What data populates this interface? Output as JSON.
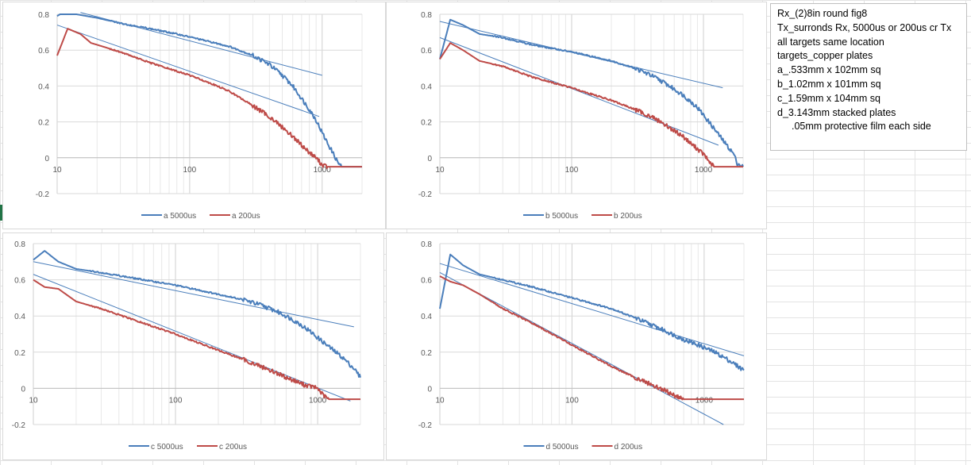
{
  "colors": {
    "series_5000": "#4a7ebb",
    "series_200": "#be4b48",
    "trend": "#4a7ebb",
    "grid": "#d9d9d9",
    "axis_text": "#595959"
  },
  "notes": {
    "lines": [
      "Rx_(2)8in round fig8",
      "Tx_surronds Rx, 5000us or 200us cr Tx",
      "all targets same location",
      "targets_copper plates",
      "a_.533mm x 102mm sq",
      "b_1.02mm x 101mm sq",
      "c_1.59mm x 104mm sq",
      "d_3.143mm stacked plates"
    ],
    "indented_line": ".05mm protective film each side"
  },
  "chart_data": [
    {
      "type": "line",
      "id": "a",
      "x_scale": "log",
      "xlim": [
        10,
        2000
      ],
      "ylim": [
        -0.2,
        0.8
      ],
      "y_ticks": [
        "0.8",
        "0.6",
        "0.4",
        "0.2",
        "0",
        "-0.2"
      ],
      "y_tick_values": [
        0.8,
        0.6,
        0.4,
        0.2,
        0,
        -0.2
      ],
      "x_ticks": [
        "10",
        "100",
        "1000"
      ],
      "x_tick_values": [
        10,
        100,
        1000
      ],
      "series": [
        {
          "name": "a 5000us",
          "x": [
            10,
            10.5,
            11,
            12,
            14,
            20,
            30,
            50,
            80,
            120,
            200,
            300,
            400,
            500,
            600,
            700,
            800,
            900,
            1000,
            1100,
            1200,
            1300,
            1400,
            2000
          ],
          "y": [
            0.79,
            0.8,
            0.8,
            0.8,
            0.8,
            0.78,
            0.75,
            0.72,
            0.69,
            0.66,
            0.62,
            0.57,
            0.52,
            0.46,
            0.4,
            0.33,
            0.27,
            0.21,
            0.14,
            0.08,
            0.03,
            -0.02,
            -0.05,
            -0.05
          ]
        },
        {
          "name": "a 200us",
          "x": [
            10,
            12,
            15,
            18,
            20,
            30,
            50,
            100,
            150,
            200,
            300,
            400,
            500,
            600,
            700,
            800,
            900,
            1000,
            1100,
            2000
          ],
          "y": [
            0.57,
            0.72,
            0.69,
            0.64,
            0.63,
            0.59,
            0.53,
            0.46,
            0.41,
            0.37,
            0.29,
            0.23,
            0.17,
            0.12,
            0.07,
            0.03,
            0.0,
            -0.04,
            -0.05,
            -0.05
          ]
        }
      ],
      "trendlines": [
        {
          "x": [
            15,
            1000
          ],
          "y": [
            0.81,
            0.46
          ]
        },
        {
          "x": [
            10,
            950
          ],
          "y": [
            0.74,
            0.23
          ]
        }
      ],
      "legend": "bottom"
    },
    {
      "type": "line",
      "id": "b",
      "x_scale": "log",
      "xlim": [
        10,
        2000
      ],
      "ylim": [
        -0.2,
        0.8
      ],
      "y_ticks": [
        "0.8",
        "0.6",
        "0.4",
        "0.2",
        "0",
        "-0.2"
      ],
      "y_tick_values": [
        0.8,
        0.6,
        0.4,
        0.2,
        0,
        -0.2
      ],
      "x_ticks": [
        "10",
        "100",
        "1000"
      ],
      "x_tick_values": [
        10,
        100,
        1000
      ],
      "series": [
        {
          "name": "b 5000us",
          "x": [
            10,
            12,
            15,
            20,
            30,
            50,
            100,
            200,
            300,
            400,
            500,
            700,
            900,
            1100,
            1300,
            1500,
            1700,
            1800,
            2000
          ],
          "y": [
            0.55,
            0.77,
            0.74,
            0.69,
            0.67,
            0.63,
            0.59,
            0.54,
            0.5,
            0.46,
            0.42,
            0.35,
            0.28,
            0.2,
            0.13,
            0.07,
            0.02,
            -0.03,
            -0.05
          ]
        },
        {
          "name": "b 200us",
          "x": [
            10,
            12,
            15,
            20,
            30,
            50,
            100,
            200,
            300,
            400,
            500,
            600,
            700,
            800,
            900,
            1000,
            1100,
            1200,
            2000
          ],
          "y": [
            0.55,
            0.64,
            0.6,
            0.54,
            0.51,
            0.45,
            0.39,
            0.32,
            0.27,
            0.23,
            0.19,
            0.15,
            0.12,
            0.08,
            0.05,
            0.02,
            -0.02,
            -0.05,
            -0.05
          ]
        }
      ],
      "trendlines": [
        {
          "x": [
            10,
            1400
          ],
          "y": [
            0.76,
            0.39
          ]
        },
        {
          "x": [
            10,
            1300
          ],
          "y": [
            0.67,
            0.07
          ]
        }
      ],
      "legend": "bottom"
    },
    {
      "type": "line",
      "id": "c",
      "x_scale": "log",
      "xlim": [
        10,
        2000
      ],
      "ylim": [
        -0.2,
        0.8
      ],
      "y_ticks": [
        "0.8",
        "0.6",
        "0.4",
        "0.2",
        "0",
        "-0.2"
      ],
      "y_tick_values": [
        0.8,
        0.6,
        0.4,
        0.2,
        0,
        -0.2
      ],
      "x_ticks": [
        "10",
        "100",
        "1000"
      ],
      "x_tick_values": [
        10,
        100,
        1000
      ],
      "series": [
        {
          "name": "c 5000us",
          "x": [
            10,
            12,
            15,
            20,
            30,
            50,
            100,
            200,
            300,
            400,
            500,
            600,
            700,
            800,
            900,
            1000,
            1200,
            1500,
            1800,
            2000
          ],
          "y": [
            0.71,
            0.76,
            0.7,
            0.66,
            0.64,
            0.61,
            0.57,
            0.52,
            0.49,
            0.46,
            0.43,
            0.4,
            0.37,
            0.34,
            0.31,
            0.28,
            0.23,
            0.17,
            0.11,
            0.06
          ]
        },
        {
          "name": "c 200us",
          "x": [
            10,
            12,
            15,
            20,
            30,
            50,
            100,
            200,
            300,
            400,
            500,
            600,
            700,
            800,
            900,
            1000,
            1100,
            1200,
            2000
          ],
          "y": [
            0.6,
            0.56,
            0.55,
            0.48,
            0.44,
            0.38,
            0.3,
            0.21,
            0.16,
            0.12,
            0.09,
            0.06,
            0.04,
            0.02,
            0.01,
            0.0,
            -0.04,
            -0.06,
            -0.06
          ]
        }
      ],
      "trendlines": [
        {
          "x": [
            10,
            1800
          ],
          "y": [
            0.7,
            0.34
          ]
        },
        {
          "x": [
            10,
            1700
          ],
          "y": [
            0.63,
            -0.07
          ]
        }
      ],
      "legend": "bottom"
    },
    {
      "type": "line",
      "id": "d",
      "x_scale": "log",
      "xlim": [
        10,
        2000
      ],
      "ylim": [
        -0.2,
        0.8
      ],
      "y_ticks": [
        "0.8",
        "0.6",
        "0.4",
        "0.2",
        "0",
        "-0.2"
      ],
      "y_tick_values": [
        0.8,
        0.6,
        0.4,
        0.2,
        0,
        -0.2
      ],
      "x_ticks": [
        "10",
        "100",
        "1000"
      ],
      "x_tick_values": [
        10,
        100,
        1000
      ],
      "series": [
        {
          "name": "d 5000us",
          "x": [
            10,
            12,
            15,
            20,
            30,
            50,
            100,
            200,
            300,
            400,
            500,
            700,
            900,
            1200,
            1500,
            2000
          ],
          "y": [
            0.44,
            0.74,
            0.68,
            0.63,
            0.6,
            0.56,
            0.5,
            0.44,
            0.39,
            0.35,
            0.32,
            0.27,
            0.24,
            0.2,
            0.16,
            0.1
          ]
        },
        {
          "name": "d 200us",
          "x": [
            10,
            12,
            15,
            20,
            30,
            50,
            100,
            200,
            300,
            400,
            500,
            600,
            700,
            2000
          ],
          "y": [
            0.62,
            0.59,
            0.57,
            0.52,
            0.44,
            0.36,
            0.24,
            0.12,
            0.06,
            0.02,
            -0.01,
            -0.04,
            -0.06,
            -0.06
          ]
        }
      ],
      "trendlines": [
        {
          "x": [
            10,
            2000
          ],
          "y": [
            0.69,
            0.18
          ]
        },
        {
          "x": [
            10,
            1400
          ],
          "y": [
            0.64,
            -0.2
          ]
        }
      ],
      "legend": "bottom"
    }
  ]
}
